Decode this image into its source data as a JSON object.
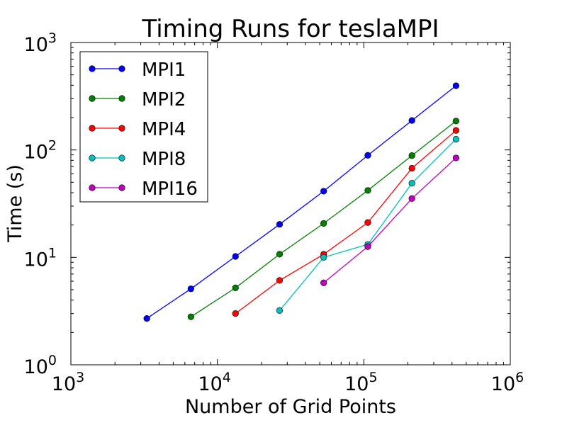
{
  "chart_data": {
    "type": "line",
    "title": "Timing Runs for teslaMPI",
    "xlabel": "Number of Grid Points",
    "ylabel": "Time (s)",
    "xscale": "log",
    "yscale": "log",
    "xlim": [
      1000,
      1000000
    ],
    "ylim": [
      1,
      1000
    ],
    "x_ticks": [
      {
        "base": "10",
        "exp": "3"
      },
      {
        "base": "10",
        "exp": "4"
      },
      {
        "base": "10",
        "exp": "5"
      },
      {
        "base": "10",
        "exp": "6"
      }
    ],
    "y_ticks": [
      {
        "base": "10",
        "exp": "0"
      },
      {
        "base": "10",
        "exp": "1"
      },
      {
        "base": "10",
        "exp": "2"
      },
      {
        "base": "10",
        "exp": "3"
      }
    ],
    "grid": false,
    "legend_position": "top-left",
    "series": [
      {
        "name": "MPI1",
        "color": "#0000ff",
        "x": [
          3300,
          6600,
          13300,
          26600,
          53200,
          106500,
          213000,
          426000
        ],
        "y": [
          2.7,
          5.1,
          10.2,
          20.3,
          41.3,
          89.1,
          188,
          396
        ]
      },
      {
        "name": "MPI2",
        "color": "#008000",
        "x": [
          6600,
          13300,
          26600,
          53200,
          106500,
          213000,
          426000
        ],
        "y": [
          2.8,
          5.2,
          10.7,
          20.7,
          42.0,
          88.6,
          186
        ]
      },
      {
        "name": "MPI4",
        "color": "#ff0000",
        "x": [
          13300,
          26600,
          53200,
          106500,
          213000,
          426000
        ],
        "y": [
          3.0,
          6.1,
          10.7,
          21.1,
          67.6,
          152
        ]
      },
      {
        "name": "MPI8",
        "color": "#00bfbf",
        "x": [
          26600,
          53200,
          106500,
          213000,
          426000
        ],
        "y": [
          3.2,
          10.0,
          13.2,
          49.0,
          126
        ]
      },
      {
        "name": "MPI16",
        "color": "#bf00bf",
        "x": [
          53200,
          106500,
          213000,
          426000
        ],
        "y": [
          5.8,
          12.6,
          35.3,
          84.3
        ]
      }
    ]
  }
}
